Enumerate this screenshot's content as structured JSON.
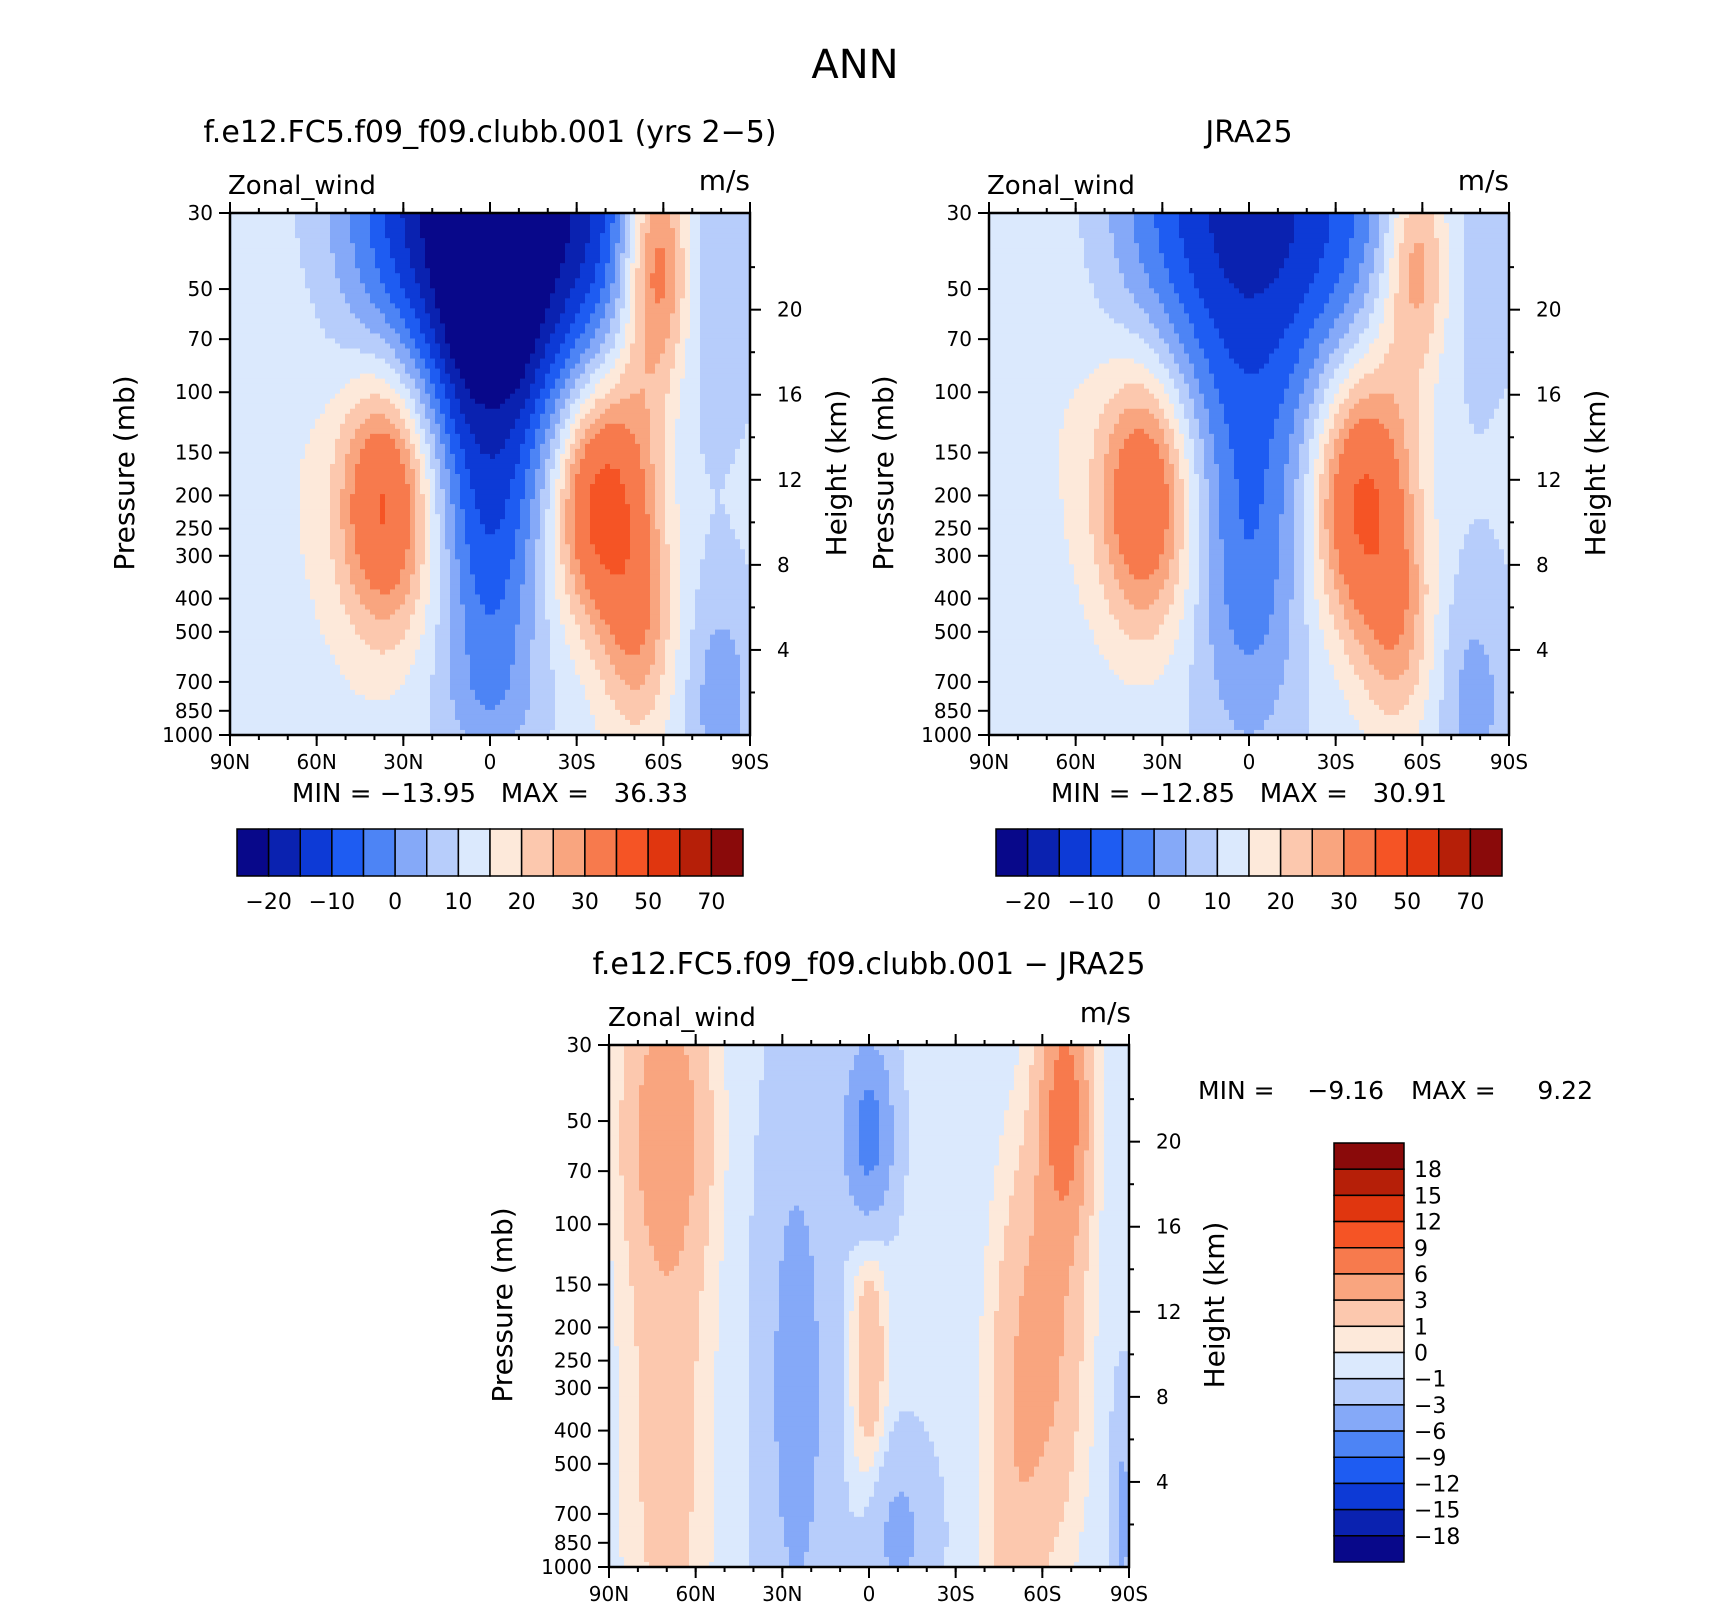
{
  "figure_title": "ANN",
  "chart_data": [
    {
      "type": "heatmap",
      "panel": "model",
      "title": "f.e12.FC5.f09_f09.clubb.001 (yrs 2−5)",
      "left_label": "Zonal_wind",
      "right_label": "m/s",
      "ylabel": "Pressure (mb)",
      "ylabel2": "Height (km)",
      "stats": "MIN = −13.95   MAX =   36.33",
      "min": -13.95,
      "max": 36.33,
      "x_ticks": [
        "90N",
        "60N",
        "30N",
        "0",
        "30S",
        "60S",
        "90S"
      ],
      "x_values": [
        90,
        60,
        30,
        0,
        -30,
        -60,
        -90
      ],
      "xlim": [
        90,
        -90
      ],
      "y_ticks": [
        "30",
        "50",
        "70",
        "100",
        "150",
        "200",
        "250",
        "300",
        "400",
        "500",
        "700",
        "850",
        "1000"
      ],
      "y_values": [
        30,
        50,
        70,
        100,
        150,
        200,
        250,
        300,
        400,
        500,
        700,
        850,
        1000
      ],
      "ylim": [
        1000,
        30
      ],
      "y_scale": "log",
      "y2_ticks": [
        "20",
        "16",
        "12",
        "8",
        "4"
      ],
      "y2_values": [
        20,
        16,
        12,
        8,
        4
      ],
      "levels": [
        -25,
        -20,
        -15,
        -10,
        -5,
        0,
        5,
        10,
        15,
        20,
        25,
        30,
        40,
        50,
        60,
        70,
        80
      ],
      "colorbar_labels": [
        "−20",
        "−10",
        "0",
        "10",
        "20",
        "30",
        "50",
        "70"
      ],
      "colorbar_placement": "bottom",
      "blobs": [
        {
          "lat": 0,
          "p": 30,
          "dlat": 60,
          "dp": 1.6,
          "a": -40
        },
        {
          "lat": 8,
          "p": 55,
          "dlat": 10,
          "dp": 0.8,
          "a": -8
        },
        {
          "lat": -8,
          "p": 55,
          "dlat": 10,
          "dp": 0.8,
          "a": -8
        },
        {
          "lat": 0,
          "p": 300,
          "dlat": 16,
          "dp": 1.2,
          "a": -16
        },
        {
          "lat": 0,
          "p": 800,
          "dlat": 20,
          "dp": 0.4,
          "a": -4
        },
        {
          "lat": 36,
          "p": 200,
          "dlat": 16,
          "dp": 0.9,
          "a": 32
        },
        {
          "lat": -35,
          "p": 200,
          "dlat": 14,
          "dp": 0.8,
          "a": 28
        },
        {
          "lat": -58,
          "p": 40,
          "dlat": 12,
          "dp": 0.9,
          "a": 32
        },
        {
          "lat": -48,
          "p": 200,
          "dlat": 14,
          "dp": 1.2,
          "a": 18
        },
        {
          "lat": -52,
          "p": 500,
          "dlat": 12,
          "dp": 0.7,
          "a": 10
        },
        {
          "lat": 60,
          "p": 40,
          "dlat": 30,
          "dp": 2.0,
          "a": 10
        },
        {
          "lat": -80,
          "p": 800,
          "dlat": 12,
          "dp": 0.8,
          "a": -10
        }
      ],
      "base": 12,
      "missing": [
        {
          "lat0": -48,
          "lat1": -75,
          "p0": 990,
          "p1": 1000
        }
      ]
    },
    {
      "type": "heatmap",
      "panel": "obs",
      "title": "JRA25",
      "left_label": "Zonal_wind",
      "right_label": "m/s",
      "ylabel": "Pressure (mb)",
      "ylabel2": "Height (km)",
      "stats": "MIN = −12.85   MAX =   30.91",
      "min": -12.85,
      "max": 30.91,
      "x_ticks": [
        "90N",
        "60N",
        "30N",
        "0",
        "30S",
        "60S",
        "90S"
      ],
      "x_values": [
        90,
        60,
        30,
        0,
        -30,
        -60,
        -90
      ],
      "xlim": [
        90,
        -90
      ],
      "y_ticks": [
        "30",
        "50",
        "70",
        "100",
        "150",
        "200",
        "250",
        "300",
        "400",
        "500",
        "700",
        "850",
        "1000"
      ],
      "y_values": [
        30,
        50,
        70,
        100,
        150,
        200,
        250,
        300,
        400,
        500,
        700,
        850,
        1000
      ],
      "ylim": [
        1000,
        30
      ],
      "y_scale": "log",
      "y2_ticks": [
        "20",
        "16",
        "12",
        "8",
        "4"
      ],
      "y2_values": [
        20,
        16,
        12,
        8,
        4
      ],
      "levels": [
        -25,
        -20,
        -15,
        -10,
        -5,
        0,
        5,
        10,
        15,
        20,
        25,
        30,
        40,
        50,
        60,
        70,
        80
      ],
      "colorbar_labels": [
        "−20",
        "−10",
        "0",
        "10",
        "20",
        "30",
        "50",
        "70"
      ],
      "colorbar_placement": "bottom",
      "blobs": [
        {
          "lat": 0,
          "p": 30,
          "dlat": 55,
          "dp": 1.4,
          "a": -28
        },
        {
          "lat": 0,
          "p": 300,
          "dlat": 18,
          "dp": 1.3,
          "a": -14
        },
        {
          "lat": 36,
          "p": 200,
          "dlat": 16,
          "dp": 0.9,
          "a": 28
        },
        {
          "lat": -35,
          "p": 200,
          "dlat": 14,
          "dp": 0.9,
          "a": 24
        },
        {
          "lat": -58,
          "p": 40,
          "dlat": 12,
          "dp": 0.8,
          "a": 22
        },
        {
          "lat": -48,
          "p": 200,
          "dlat": 14,
          "dp": 1.2,
          "a": 16
        },
        {
          "lat": -52,
          "p": 500,
          "dlat": 12,
          "dp": 0.7,
          "a": 10
        },
        {
          "lat": 60,
          "p": 40,
          "dlat": 30,
          "dp": 2.0,
          "a": 8
        },
        {
          "lat": -78,
          "p": 800,
          "dlat": 12,
          "dp": 0.8,
          "a": -8
        }
      ],
      "base": 11,
      "missing": []
    },
    {
      "type": "heatmap",
      "panel": "difference",
      "title": "f.e12.FC5.f09_f09.clubb.001 − JRA25",
      "left_label": "Zonal_wind",
      "right_label": "m/s",
      "ylabel": "Pressure (mb)",
      "ylabel2": "Height (km)",
      "stats_min_label": "MIN =",
      "stats_min_value": "−9.16",
      "stats_max_label": "MAX =",
      "stats_max_value": "9.22",
      "min": -9.16,
      "max": 9.22,
      "x_ticks": [
        "90N",
        "60N",
        "30N",
        "0",
        "30S",
        "60S",
        "90S"
      ],
      "x_values": [
        90,
        60,
        30,
        0,
        -30,
        -60,
        -90
      ],
      "xlim": [
        90,
        -90
      ],
      "y_ticks": [
        "30",
        "50",
        "70",
        "100",
        "150",
        "200",
        "250",
        "300",
        "400",
        "500",
        "700",
        "850",
        "1000"
      ],
      "y_values": [
        30,
        50,
        70,
        100,
        150,
        200,
        250,
        300,
        400,
        500,
        700,
        850,
        1000
      ],
      "ylim": [
        1000,
        30
      ],
      "y_scale": "log",
      "y2_ticks": [
        "20",
        "16",
        "12",
        "8",
        "4"
      ],
      "y2_values": [
        20,
        16,
        12,
        8,
        4
      ],
      "levels": [
        -21,
        -18,
        -15,
        -12,
        -9,
        -6,
        -3,
        -1,
        0,
        1,
        3,
        6,
        9,
        12,
        15,
        18,
        21
      ],
      "colorbar_labels": [
        "18",
        "15",
        "12",
        "9",
        "6",
        "3",
        "1",
        "0",
        "−1",
        "−3",
        "−6",
        "−9",
        "−12",
        "−15",
        "−18"
      ],
      "colorbar_placement": "right",
      "blobs": [
        {
          "lat": 70,
          "p": 50,
          "dlat": 14,
          "dp": 1.0,
          "a": 5
        },
        {
          "lat": 70,
          "p": 400,
          "dlat": 14,
          "dp": 2.0,
          "a": 2.5
        },
        {
          "lat": 0,
          "p": 55,
          "dlat": 8,
          "dp": 0.6,
          "a": -7
        },
        {
          "lat": 0,
          "p": 250,
          "dlat": 6,
          "dp": 0.9,
          "a": 3
        },
        {
          "lat": 25,
          "p": 300,
          "dlat": 12,
          "dp": 2.0,
          "a": -3.5
        },
        {
          "lat": -10,
          "p": 800,
          "dlat": 12,
          "dp": 0.6,
          "a": -3
        },
        {
          "lat": -68,
          "p": 45,
          "dlat": 8,
          "dp": 0.8,
          "a": 8
        },
        {
          "lat": -62,
          "p": 200,
          "dlat": 12,
          "dp": 1.4,
          "a": 4
        },
        {
          "lat": -50,
          "p": 500,
          "dlat": 10,
          "dp": 1.6,
          "a": 2.5
        },
        {
          "lat": -88,
          "p": 700,
          "dlat": 4,
          "dp": 0.8,
          "a": -3
        }
      ],
      "base": -0.6,
      "missing": [
        {
          "lat0": -48,
          "lat1": -82,
          "p0": 990,
          "p1": 1000
        }
      ]
    }
  ],
  "colors": {
    "uv_palette": [
      "#08088a",
      "#0a22b0",
      "#0d3ad6",
      "#1e5cf2",
      "#4d84f5",
      "#85a9f8",
      "#b7cdfb",
      "#dbe9fd",
      "#fde9da",
      "#fcc8ae",
      "#f9a57f",
      "#f77a4d",
      "#f55425",
      "#e0360f",
      "#b61f08",
      "#8a0a0a"
    ],
    "diff_palette": [
      "#08088a",
      "#0a22b0",
      "#0d3ad6",
      "#1e5cf2",
      "#4d84f5",
      "#85a9f8",
      "#b7cdfb",
      "#dbe9fd",
      "#fde9da",
      "#fcc8ae",
      "#f9a57f",
      "#f77a4d",
      "#f55425",
      "#e0360f",
      "#b61f08",
      "#8a0a0a"
    ]
  }
}
